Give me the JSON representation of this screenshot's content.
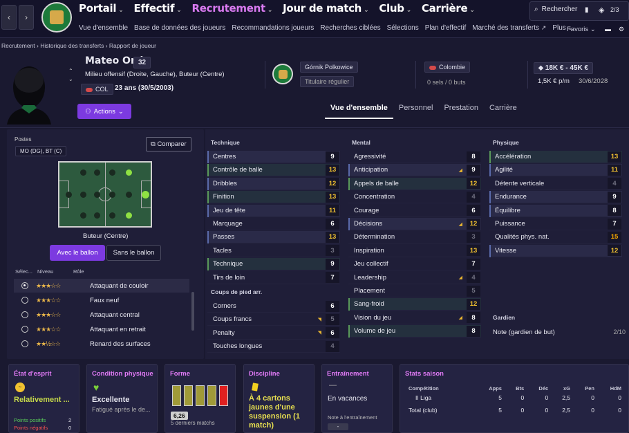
{
  "nav": {
    "back": "‹",
    "fwd": "›",
    "main": [
      {
        "label": "Portail"
      },
      {
        "label": "Effectif"
      },
      {
        "label": "Recrutement"
      },
      {
        "label": "Jour de match"
      },
      {
        "label": "Club"
      },
      {
        "label": "Carrière"
      }
    ],
    "sub": [
      "Vue d'ensemble",
      "Base de données des joueurs",
      "Recommandations joueurs",
      "Recherches ciblées",
      "Sélections",
      "Plan d'effectif",
      "Marché des transferts"
    ],
    "plus": "Plus",
    "favoris": "Favoris",
    "search": "Rechercher",
    "badge": "2/3",
    "crest_text": "GÓRNIK POLKOWICE"
  },
  "breadcrumb": {
    "a": "Recrutement",
    "b": "Historique des transferts",
    "c": "Rapport de joueur"
  },
  "player": {
    "name": "Mateo Ortiz",
    "number": "32",
    "position": "Milieu offensif (Droite, Gauche), Buteur (Centre)",
    "nat": "COL",
    "age": "23 ans (30/5/2003)",
    "club": "Górnik Polkowice",
    "status": "Titulaire régulier",
    "country": "Colombie",
    "intl": "0 sels / 0 buts",
    "value": "18K € - 45K €",
    "wage": "1,5K € p/m",
    "contract": "30/6/2028",
    "actions": "Actions"
  },
  "tabs": [
    "Vue d'ensemble",
    "Personnel",
    "Prestation",
    "Carrière"
  ],
  "left": {
    "postes": "Postes",
    "poste_val": "MO (DG), BT (C)",
    "comparer": "Comparer",
    "role_label": "Buteur (Centre)",
    "with_ball": "Avec le ballon",
    "without_ball": "Sans le ballon",
    "col_sel": "Sélec...",
    "col_lvl": "Niveau",
    "col_role": "Rôle",
    "roles": [
      {
        "name": "Attaquant de couloir",
        "stars": "★★★☆☆",
        "sel": true
      },
      {
        "name": "Faux neuf",
        "stars": "★★★☆☆",
        "sel": false
      },
      {
        "name": "Attaquant central",
        "stars": "★★★☆☆",
        "sel": false
      },
      {
        "name": "Attaquant en retrait",
        "stars": "★★★☆☆",
        "sel": false
      },
      {
        "name": "Renard des surfaces",
        "stars": "★★½☆☆",
        "sel": false
      }
    ]
  },
  "attrs": {
    "technique_label": "Technique",
    "mental_label": "Mental",
    "physique_label": "Physique",
    "coups_label": "Coups de pied arr.",
    "gardien_label": "Gardien",
    "technique": [
      [
        "Centres",
        "9",
        "w",
        "hl2",
        ""
      ],
      [
        "Contrôle de balle",
        "13",
        "y",
        "hl",
        ""
      ],
      [
        "Dribbles",
        "12",
        "y",
        "hl2",
        ""
      ],
      [
        "Finition",
        "13",
        "y",
        "hl",
        ""
      ],
      [
        "Jeu de tête",
        "11",
        "y",
        "hl2",
        ""
      ],
      [
        "Marquage",
        "6",
        "w",
        "",
        ""
      ],
      [
        "Passes",
        "13",
        "y",
        "hl2",
        ""
      ],
      [
        "Tacles",
        "3",
        "g",
        "",
        ""
      ],
      [
        "Technique",
        "9",
        "w",
        "hl",
        ""
      ],
      [
        "Tirs de loin",
        "7",
        "w",
        "",
        ""
      ]
    ],
    "coups": [
      [
        "Corners",
        "6",
        "w",
        "",
        ""
      ],
      [
        "Coups francs",
        "5",
        "g",
        "",
        "down"
      ],
      [
        "Penalty",
        "6",
        "w",
        "",
        "down"
      ],
      [
        "Touches longues",
        "4",
        "g",
        "",
        ""
      ]
    ],
    "mental": [
      [
        "Agressivité",
        "8",
        "w",
        "",
        ""
      ],
      [
        "Anticipation",
        "9",
        "w",
        "hl2",
        "up"
      ],
      [
        "Appels de balle",
        "12",
        "y",
        "hl",
        ""
      ],
      [
        "Concentration",
        "4",
        "g",
        "",
        ""
      ],
      [
        "Courage",
        "6",
        "w",
        "",
        ""
      ],
      [
        "Décisions",
        "12",
        "y",
        "hl2",
        "up"
      ],
      [
        "Détermination",
        "3",
        "g",
        "",
        ""
      ],
      [
        "Inspiration",
        "13",
        "y",
        "",
        ""
      ],
      [
        "Jeu collectif",
        "7",
        "w",
        "",
        ""
      ],
      [
        "Leadership",
        "4",
        "g",
        "",
        "up"
      ],
      [
        "Placement",
        "5",
        "g",
        "",
        ""
      ],
      [
        "Sang-froid",
        "12",
        "y",
        "hl",
        ""
      ],
      [
        "Vision du jeu",
        "8",
        "w",
        "",
        "up"
      ],
      [
        "Volume de jeu",
        "8",
        "w",
        "hl",
        ""
      ]
    ],
    "physique": [
      [
        "Accélération",
        "13",
        "y",
        "hl",
        ""
      ],
      [
        "Agilité",
        "11",
        "y",
        "hl2",
        ""
      ],
      [
        "Détente verticale",
        "4",
        "g",
        "",
        ""
      ],
      [
        "Endurance",
        "9",
        "w",
        "hl2",
        ""
      ],
      [
        "Équilibre",
        "8",
        "w",
        "hl2",
        ""
      ],
      [
        "Puissance",
        "7",
        "w",
        "",
        ""
      ],
      [
        "Qualités phys. nat.",
        "15",
        "o",
        "",
        ""
      ],
      [
        "Vitesse",
        "12",
        "y",
        "hl2",
        ""
      ]
    ],
    "gk_row": "Note (gardien de but)",
    "gk_val": "2/10"
  },
  "bottom": {
    "mind": {
      "title": "État d'esprit",
      "value": "Relativement ...",
      "pos": "Points positifs",
      "pos_n": "2",
      "neg": "Points négatifs",
      "neg_n": "0"
    },
    "cond": {
      "title": "Condition physique",
      "value": "Excellente",
      "sub": "Fatigué après le de..."
    },
    "forme": {
      "title": "Forme",
      "avg": "6,26",
      "sub": "5 derniers matchs",
      "bars": [
        "g",
        "g",
        "g",
        "g",
        "r"
      ]
    },
    "disc": {
      "title": "Discipline",
      "value": "À 4 cartons jaunes d'une suspension (1 match)"
    },
    "train": {
      "title": "Entraînement",
      "dash": "—",
      "value": "En vacances",
      "note": "Note à l'entraînement",
      "note_val": "-"
    },
    "season": {
      "title": "Stats saison",
      "cols": [
        "Compétition",
        "Apps",
        "Bts",
        "Déc",
        "xG",
        "Pen",
        "HdM"
      ],
      "rows": [
        [
          "II Liga",
          "5",
          "0",
          "0",
          "2,5",
          "0",
          "0"
        ],
        [
          "Total (club)",
          "5",
          "0",
          "0",
          "2,5",
          "0",
          "0"
        ]
      ]
    }
  },
  "colors": {
    "accent": "#d97af0",
    "purple": "#7c3ae0",
    "yellow": "#f2c230",
    "green": "#8fe043",
    "red": "#e02020"
  }
}
